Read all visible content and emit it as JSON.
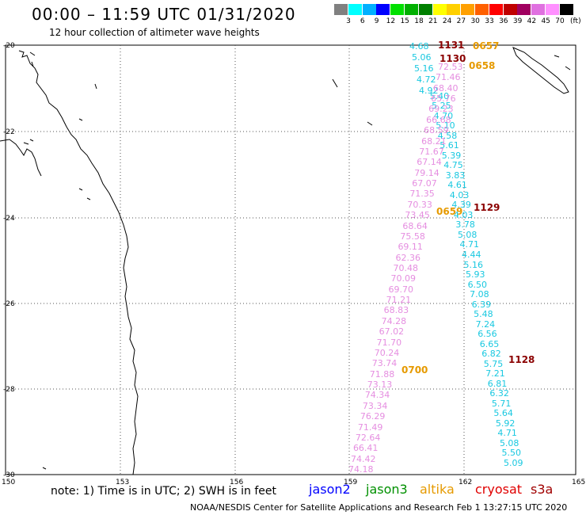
{
  "title": "00:00 – 11:59 UTC 01/31/2020",
  "subtitle": "12 hour collection of altimeter wave heights",
  "legend": {
    "labels": [
      "3",
      "6",
      "9",
      "12",
      "15",
      "18",
      "21",
      "24",
      "27",
      "30",
      "33",
      "36",
      "39",
      "42",
      "45",
      "70"
    ],
    "unit": "(ft)",
    "colors": [
      "#808080",
      "#00ffff",
      "#00b0ff",
      "#0000ff",
      "#00e000",
      "#00b000",
      "#008000",
      "#ffff00",
      "#ffd000",
      "#ffa000",
      "#ff6000",
      "#ff0000",
      "#c00000",
      "#a00060",
      "#e070e0",
      "#ff90ff",
      "#000000"
    ]
  },
  "lat_labels": [
    "-20",
    "-22",
    "-24",
    "-26",
    "-28",
    "-30"
  ],
  "lon_labels": [
    "150",
    "153",
    "156",
    "159",
    "162",
    "165"
  ],
  "track_times": [
    "1131",
    "0657",
    "1130",
    "0658",
    "0659",
    "1129",
    "0700",
    "1128"
  ],
  "cyan_values": [
    "4.68",
    "5.06",
    "5.16",
    "4.72",
    "4.92",
    "5.40",
    "5.25",
    "4.70",
    "5.10",
    "4.58",
    "5.61",
    "5.39",
    "4.75",
    "3.83",
    "4.61",
    "4.03",
    "4.39",
    "4.03",
    "3.78",
    "5.08",
    "4.71",
    "4.44",
    "5.16",
    "5.93",
    "6.50",
    "7.08",
    "6.39",
    "5.48",
    "7.24",
    "6.56",
    "6.65",
    "6.82",
    "5.75",
    "7.21",
    "6.81",
    "6.32",
    "5.71",
    "5.64",
    "5.92",
    "4.71",
    "5.08",
    "5.50",
    "5.09"
  ],
  "pink_values": [
    "72.53",
    "71.46",
    "68.40",
    "65.76",
    "69.23",
    "66.68",
    "68.59",
    "68.21",
    "71.67",
    "67.14",
    "79.14",
    "67.07",
    "71.35",
    "70.33",
    "73.45",
    "68.64",
    "75.58",
    "69.11",
    "62.36",
    "70.48",
    "70.09",
    "69.70",
    "71.21",
    "68.83",
    "74.28",
    "67.02",
    "71.70",
    "70.24",
    "73.74",
    "71.88",
    "73.13",
    "74.34",
    "73.34",
    "76.29",
    "71.49",
    "72.64",
    "66.41",
    "74.42",
    "74.18"
  ],
  "note": "note: 1) Time is in UTC; 2) SWH is in feet",
  "satellites": [
    {
      "name": "jason2",
      "color": "#0000ff"
    },
    {
      "name": "jason3",
      "color": "#009000"
    },
    {
      "name": "altika",
      "color": "#e69a00"
    },
    {
      "name": "cryosat",
      "color": "#e00000"
    },
    {
      "name": "s3a",
      "color": "#a00000"
    }
  ],
  "credit": "NOAA/NESDIS Center for Satellite Applications and Research   Feb  1 13:27:15 UTC 2020"
}
